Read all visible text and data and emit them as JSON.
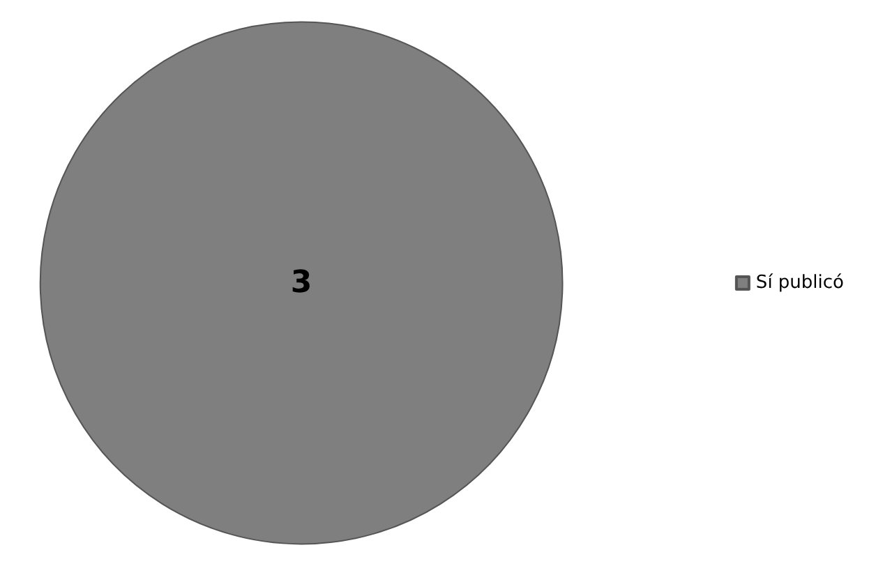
{
  "chart_data": {
    "type": "pie",
    "categories": [
      "Sí publicó"
    ],
    "values": [
      3
    ],
    "colors": [
      "#7f7f7f"
    ],
    "data_labels": true,
    "legend": "right"
  }
}
